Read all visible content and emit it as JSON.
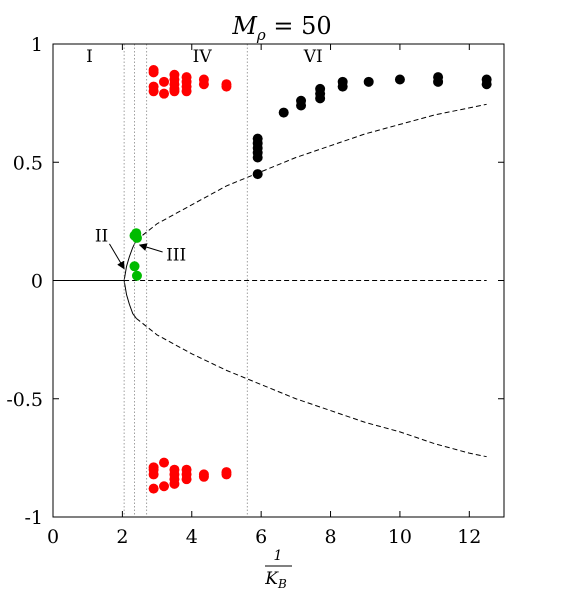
{
  "chart_data": {
    "type": "scatter",
    "title": "M",
    "title_subscript": "ρ",
    "title_rest": " = 50",
    "xlabel_numerator": "1",
    "xlabel_denominator": "K",
    "xlabel_denominator_subscript": "B",
    "xlim": [
      0,
      13
    ],
    "ylim": [
      -1,
      1
    ],
    "x_ticks": [
      {
        "value": 0,
        "label": "0"
      },
      {
        "value": 2,
        "label": "2"
      },
      {
        "value": 4,
        "label": "4"
      },
      {
        "value": 6,
        "label": "6"
      },
      {
        "value": 8,
        "label": "8"
      },
      {
        "value": 10,
        "label": "10"
      },
      {
        "value": 12,
        "label": "12"
      }
    ],
    "y_ticks": [
      {
        "value": -1,
        "label": "-1"
      },
      {
        "value": -0.5,
        "label": "-0.5"
      },
      {
        "value": 0,
        "label": "0"
      },
      {
        "value": 0.5,
        "label": "0.5"
      },
      {
        "value": 1,
        "label": "1"
      }
    ],
    "grid": false,
    "region_boundaries": [
      2.05,
      2.35,
      2.7,
      5.6
    ],
    "region_labels": [
      {
        "label": "I",
        "x": 1.05,
        "y": 0.95
      },
      {
        "label": "IV",
        "x": 4.3,
        "y": 0.95
      },
      {
        "label": "VI",
        "x": 7.5,
        "y": 0.95
      }
    ],
    "annotations": [
      {
        "label": "II",
        "text_x": 1.4,
        "text_y": 0.19,
        "arrow_to_x": 2.05,
        "arrow_to_y": 0.05
      },
      {
        "label": "III",
        "text_x": 3.55,
        "text_y": 0.11,
        "arrow_to_x": 2.5,
        "arrow_to_y": 0.15
      }
    ],
    "lines": [
      {
        "name": "",
        "style": "solid",
        "color": "#000000",
        "x": [
          0,
          2.0,
          2.05
        ],
        "y": [
          0,
          0,
          0
        ]
      },
      {
        "name": "",
        "style": "dashed",
        "color": "#000000",
        "x": [
          2.05,
          3,
          4,
          5,
          6,
          7,
          8,
          9,
          10,
          11,
          12,
          12.5
        ],
        "y": [
          0,
          0,
          0,
          0,
          0,
          0,
          0,
          0,
          0,
          0,
          0,
          0
        ]
      },
      {
        "name": "",
        "style": "solid",
        "color": "#000000",
        "x": [
          2.05,
          2.12,
          2.2,
          2.3,
          2.4
        ],
        "y": [
          0,
          0.06,
          0.1,
          0.14,
          0.17
        ]
      },
      {
        "name": "",
        "style": "solid",
        "color": "#000000",
        "x": [
          2.05,
          2.12,
          2.2,
          2.3,
          2.4
        ],
        "y": [
          0,
          -0.06,
          -0.1,
          -0.14,
          -0.16
        ]
      },
      {
        "name": "",
        "style": "dashed",
        "color": "#000000",
        "x": [
          2.4,
          3,
          4,
          5,
          6,
          7,
          8,
          9,
          10,
          11,
          12,
          12.5
        ],
        "y": [
          0.17,
          0.24,
          0.32,
          0.4,
          0.46,
          0.52,
          0.57,
          0.62,
          0.66,
          0.7,
          0.73,
          0.745
        ]
      },
      {
        "name": "",
        "style": "dashed",
        "color": "#000000",
        "x": [
          2.4,
          3,
          4,
          5,
          6,
          7,
          8,
          9,
          10,
          11,
          12,
          12.5
        ],
        "y": [
          -0.16,
          -0.23,
          -0.31,
          -0.38,
          -0.44,
          -0.5,
          -0.55,
          -0.6,
          -0.64,
          -0.69,
          -0.73,
          -0.745
        ]
      }
    ],
    "series": [
      {
        "name": "",
        "color": "#ff0000",
        "points": [
          [
            2.9,
            0.89
          ],
          [
            2.9,
            0.88
          ],
          [
            2.9,
            0.82
          ],
          [
            2.9,
            0.8
          ],
          [
            3.2,
            0.79
          ],
          [
            3.2,
            0.84
          ],
          [
            3.5,
            0.87
          ],
          [
            3.5,
            0.85
          ],
          [
            3.5,
            0.83
          ],
          [
            3.5,
            0.81
          ],
          [
            3.5,
            0.8
          ],
          [
            3.85,
            0.86
          ],
          [
            3.85,
            0.84
          ],
          [
            3.85,
            0.82
          ],
          [
            3.85,
            0.8
          ],
          [
            4.35,
            0.85
          ],
          [
            4.35,
            0.83
          ],
          [
            5.0,
            0.83
          ],
          [
            5.0,
            0.82
          ],
          [
            2.9,
            -0.79
          ],
          [
            2.9,
            -0.8
          ],
          [
            2.9,
            -0.82
          ],
          [
            2.9,
            -0.88
          ],
          [
            3.2,
            -0.77
          ],
          [
            3.2,
            -0.87
          ],
          [
            3.5,
            -0.8
          ],
          [
            3.5,
            -0.82
          ],
          [
            3.5,
            -0.84
          ],
          [
            3.5,
            -0.86
          ],
          [
            3.85,
            -0.8
          ],
          [
            3.85,
            -0.82
          ],
          [
            3.85,
            -0.84
          ],
          [
            4.35,
            -0.82
          ],
          [
            4.35,
            -0.83
          ],
          [
            5.0,
            -0.82
          ],
          [
            5.0,
            -0.81
          ]
        ]
      },
      {
        "name": "",
        "color": "#00bb00",
        "points": [
          [
            2.35,
            0.19
          ],
          [
            2.4,
            0.2
          ],
          [
            2.42,
            0.18
          ],
          [
            2.35,
            0.06
          ],
          [
            2.42,
            0.02
          ]
        ]
      },
      {
        "name": "",
        "color": "#000000",
        "points": [
          [
            5.9,
            0.45
          ],
          [
            5.9,
            0.52
          ],
          [
            5.9,
            0.54
          ],
          [
            5.9,
            0.56
          ],
          [
            5.9,
            0.58
          ],
          [
            5.9,
            0.6
          ],
          [
            6.65,
            0.71
          ],
          [
            7.15,
            0.74
          ],
          [
            7.15,
            0.76
          ],
          [
            7.7,
            0.77
          ],
          [
            7.7,
            0.79
          ],
          [
            7.7,
            0.81
          ],
          [
            8.35,
            0.82
          ],
          [
            8.35,
            0.84
          ],
          [
            9.1,
            0.84
          ],
          [
            10.0,
            0.85
          ],
          [
            11.1,
            0.84
          ],
          [
            11.1,
            0.86
          ],
          [
            12.5,
            0.83
          ],
          [
            12.5,
            0.85
          ]
        ]
      }
    ]
  }
}
